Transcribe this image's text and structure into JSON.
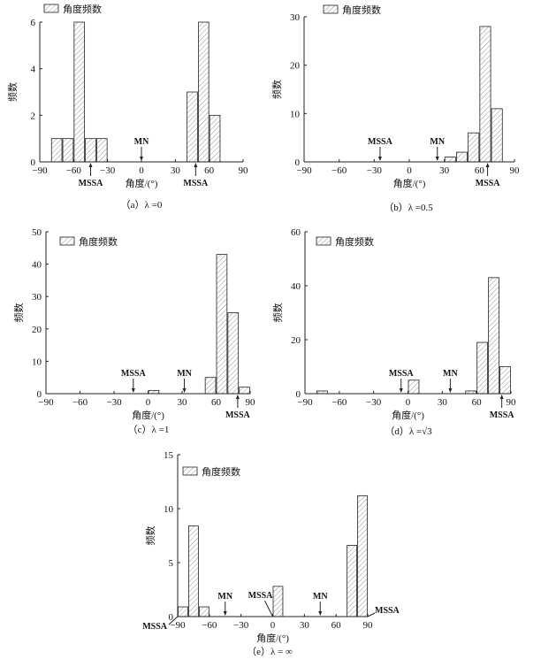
{
  "chart_data": [
    {
      "type": "bar",
      "panel": "a",
      "caption": "（a）λ =0",
      "legend": "角度频数",
      "xlabel": "角度/(°)",
      "ylabel": "频数",
      "xlim": [
        -90,
        90
      ],
      "xticks": [
        -90,
        -60,
        -30,
        0,
        30,
        60,
        90
      ],
      "ylim": [
        0,
        6
      ],
      "yticks": [
        0,
        2,
        4,
        6
      ],
      "bin_width": 10,
      "x": [
        -75,
        -65,
        -55,
        -45,
        -35,
        45,
        55,
        65
      ],
      "values": [
        1,
        1,
        6,
        1,
        1,
        3,
        6,
        2
      ],
      "annotations": [
        {
          "text": "MSSA",
          "x": -45,
          "placement": "below"
        },
        {
          "text": "MN",
          "x": 0,
          "placement": "above"
        },
        {
          "text": "MSSA",
          "x": 48,
          "placement": "below"
        }
      ]
    },
    {
      "type": "bar",
      "panel": "b",
      "caption": "（b）λ =0.5",
      "legend": "角度频数",
      "xlabel": "角度/(°)",
      "ylabel": "频数",
      "xlim": [
        -90,
        90
      ],
      "xticks": [
        -90,
        -60,
        -30,
        0,
        30,
        60,
        90
      ],
      "ylim": [
        0,
        30
      ],
      "yticks": [
        0,
        10,
        20,
        30
      ],
      "bin_width": 10,
      "x": [
        35,
        45,
        55,
        65,
        75
      ],
      "values": [
        1,
        2,
        6,
        28,
        11
      ],
      "annotations": [
        {
          "text": "MSSA",
          "x": -25,
          "placement": "above"
        },
        {
          "text": "MN",
          "x": 24,
          "placement": "above"
        },
        {
          "text": "MSSA",
          "x": 67,
          "placement": "below"
        }
      ]
    },
    {
      "type": "bar",
      "panel": "c",
      "caption": "（c）λ =1",
      "legend": "角度频数",
      "xlabel": "角度/(°)",
      "ylabel": "频数",
      "xlim": [
        -90,
        90
      ],
      "xticks": [
        -90,
        -60,
        -30,
        0,
        30,
        60,
        90
      ],
      "ylim": [
        0,
        50
      ],
      "yticks": [
        0,
        10,
        20,
        30,
        40,
        50
      ],
      "bin_width": 10,
      "x": [
        5,
        55,
        65,
        75,
        85
      ],
      "values": [
        1,
        5,
        43,
        25,
        2
      ],
      "annotations": [
        {
          "text": "MSSA",
          "x": -13,
          "placement": "above"
        },
        {
          "text": "MN",
          "x": 32,
          "placement": "above"
        },
        {
          "text": "MSSA",
          "x": 79,
          "placement": "below"
        }
      ]
    },
    {
      "type": "bar",
      "panel": "d",
      "caption": "（d）λ =√3",
      "legend": "角度频数",
      "xlabel": "角度/(°)",
      "ylabel": "频数",
      "xlim": [
        -90,
        90
      ],
      "xticks": [
        -90,
        -60,
        -30,
        0,
        30,
        60,
        90
      ],
      "ylim": [
        0,
        60
      ],
      "yticks": [
        0,
        20,
        40,
        60
      ],
      "bin_width": 10,
      "x": [
        -75,
        5,
        55,
        65,
        75,
        85
      ],
      "values": [
        1,
        5,
        1,
        19,
        43,
        10
      ],
      "annotations": [
        {
          "text": "MSSA",
          "x": -6,
          "placement": "above"
        },
        {
          "text": "MN",
          "x": 37,
          "placement": "above"
        },
        {
          "text": "MSSA",
          "x": 82,
          "placement": "below"
        }
      ]
    },
    {
      "type": "bar",
      "panel": "e",
      "caption": "（e）λ = ∞",
      "legend": "角度频数",
      "xlabel": "角度/(°)",
      "ylabel": "频数",
      "xlim": [
        -90,
        90
      ],
      "xticks": [
        -90,
        -60,
        -30,
        0,
        30,
        60,
        90
      ],
      "ylim": [
        0,
        15
      ],
      "yticks": [
        0,
        5,
        10,
        15
      ],
      "bin_width": 10,
      "x": [
        -85,
        -75,
        -65,
        5,
        75,
        85
      ],
      "values": [
        0.9,
        8.4,
        0.9,
        2.8,
        6.6,
        11.2
      ],
      "annotations": [
        {
          "text": "MSSA",
          "x": -90,
          "placement": "below-left"
        },
        {
          "text": "MN",
          "x": -45,
          "placement": "above"
        },
        {
          "text": "MSSA",
          "x": 0,
          "placement": "above-left"
        },
        {
          "text": "MN",
          "x": 45,
          "placement": "above"
        },
        {
          "text": "MSSA",
          "x": 90,
          "placement": "right"
        }
      ]
    }
  ]
}
